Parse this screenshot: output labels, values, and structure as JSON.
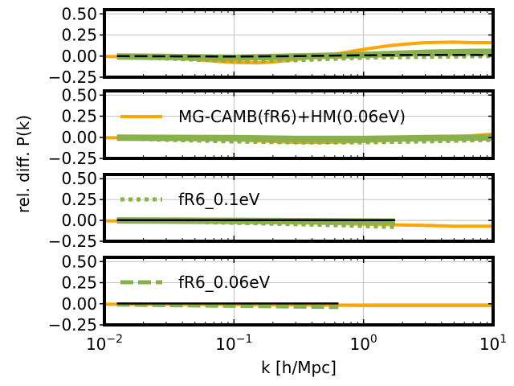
{
  "chart_data": {
    "type": "line",
    "layout": "4 vertically stacked panels, shared log x-axis",
    "xlabel": "k [h/Mpc]",
    "ylabel": "rel. diff. P(k)",
    "xscale": "log",
    "xlim": [
      0.01,
      10
    ],
    "x_ticks": [
      {
        "base": "10",
        "exp": "−2"
      },
      {
        "base": "10",
        "exp": "−1"
      },
      {
        "base": "10",
        "exp": "0"
      },
      {
        "base": "10",
        "exp": "1"
      }
    ],
    "ylim": [
      -0.25,
      0.55
    ],
    "y_ticks": [
      "0.50",
      "0.25",
      "0.00",
      "−0.25"
    ],
    "y_tick_values": [
      0.5,
      0.25,
      0.0,
      -0.25
    ],
    "grid": true,
    "colors": {
      "orange": "#ffa500",
      "green": "#88b04b",
      "black": "#000000"
    },
    "panels": [
      {
        "legend": null,
        "series": [
          {
            "name": "orange-solid",
            "style": "solid",
            "color": "#ffa500",
            "k": [
              0.01,
              0.02,
              0.04,
              0.07,
              0.1,
              0.15,
              0.2,
              0.3,
              0.5,
              0.7,
              1.0,
              1.5,
              2,
              3,
              5,
              7,
              10
            ],
            "values": [
              -0.005,
              -0.01,
              -0.03,
              -0.06,
              -0.075,
              -0.08,
              -0.07,
              -0.04,
              0.0,
              0.04,
              0.08,
              0.12,
              0.14,
              0.16,
              0.165,
              0.16,
              0.16
            ]
          },
          {
            "name": "green-solid",
            "style": "solid",
            "color": "#88b04b",
            "k": [
              0.0125,
              0.03,
              0.1,
              0.3,
              1.0,
              2.0,
              3.0,
              5.0,
              7.0,
              10.0
            ],
            "values": [
              -0.005,
              -0.01,
              -0.02,
              -0.005,
              0.015,
              0.03,
              0.04,
              0.045,
              0.05,
              0.05
            ]
          },
          {
            "name": "green-dotted",
            "style": "dotted",
            "color": "#88b04b",
            "k": [
              0.0125,
              0.03,
              0.1,
              0.3,
              1.0,
              3.0,
              10.0
            ],
            "values": [
              -0.01,
              -0.03,
              -0.06,
              -0.05,
              -0.02,
              -0.01,
              0.0
            ]
          },
          {
            "name": "black-dashed",
            "style": "dashed",
            "color": "#000000",
            "k": [
              0.0125,
              0.1,
              0.3,
              1.0,
              3.0,
              10.0
            ],
            "values": [
              0.0,
              -0.005,
              0.0,
              0.01,
              0.015,
              0.015
            ]
          }
        ]
      },
      {
        "legend": {
          "label": "MG-CAMB(fR6)+HM(0.06eV)",
          "style": "solid",
          "color": "#ffa500"
        },
        "series": [
          {
            "name": "orange-solid",
            "style": "solid",
            "color": "#ffa500",
            "k": [
              0.01,
              0.03,
              0.1,
              0.2,
              0.3,
              0.5,
              1.0,
              2.0,
              4.0,
              7.0,
              10.0
            ],
            "values": [
              -0.005,
              -0.01,
              -0.03,
              -0.05,
              -0.06,
              -0.06,
              -0.05,
              -0.03,
              -0.01,
              0.02,
              0.04
            ]
          },
          {
            "name": "green-solid",
            "style": "solid",
            "color": "#88b04b",
            "k": [
              0.0125,
              0.1,
              0.3,
              1.0,
              3.0,
              10.0
            ],
            "values": [
              -0.005,
              -0.01,
              -0.02,
              -0.02,
              -0.01,
              0.0
            ]
          },
          {
            "name": "green-dotted",
            "style": "dotted",
            "color": "#88b04b",
            "k": [
              0.0125,
              0.03,
              0.1,
              0.3,
              1.0,
              3.0,
              10.0
            ],
            "values": [
              -0.01,
              -0.03,
              -0.05,
              -0.06,
              -0.06,
              -0.05,
              -0.03
            ]
          }
        ]
      },
      {
        "legend": {
          "label": "fR6_0.1eV",
          "style": "dotted",
          "color": "#88b04b"
        },
        "series": [
          {
            "name": "orange-solid",
            "style": "solid",
            "color": "#ffa500",
            "k": [
              0.01,
              0.03,
              0.1,
              0.3,
              1.0,
              2.0,
              3.0,
              5.0,
              10.0
            ],
            "values": [
              -0.005,
              -0.01,
              -0.02,
              -0.03,
              -0.045,
              -0.055,
              -0.06,
              -0.07,
              -0.07
            ]
          },
          {
            "name": "green-solid",
            "style": "solid",
            "color": "#88b04b",
            "k": [
              0.0125,
              0.1,
              0.5,
              1.75
            ],
            "values": [
              0.0,
              -0.005,
              -0.01,
              -0.015
            ]
          },
          {
            "name": "green-dotted",
            "style": "dotted",
            "color": "#88b04b",
            "k": [
              0.0125,
              0.05,
              0.2,
              0.7,
              1.75
            ],
            "values": [
              -0.005,
              -0.02,
              -0.04,
              -0.06,
              -0.08
            ]
          },
          {
            "name": "black-solid",
            "style": "solid",
            "color": "#000000",
            "k": [
              0.0125,
              1.75
            ],
            "values": [
              0.003,
              0.003
            ]
          }
        ]
      },
      {
        "legend": {
          "label": "fR6_0.06eV",
          "style": "dashed",
          "color": "#88b04b"
        },
        "series": [
          {
            "name": "orange-solid",
            "style": "solid",
            "color": "#ffa500",
            "k": [
              0.01,
              0.1,
              1.0,
              10.0
            ],
            "values": [
              -0.005,
              -0.01,
              -0.02,
              -0.02
            ]
          },
          {
            "name": "green-dashed",
            "style": "dashed",
            "color": "#88b04b",
            "k": [
              0.0125,
              0.05,
              0.2,
              0.64
            ],
            "values": [
              -0.01,
              -0.02,
              -0.03,
              -0.04
            ]
          },
          {
            "name": "black-solid",
            "style": "solid",
            "color": "#000000",
            "k": [
              0.0125,
              0.64
            ],
            "values": [
              0.003,
              0.003
            ]
          }
        ]
      }
    ]
  }
}
